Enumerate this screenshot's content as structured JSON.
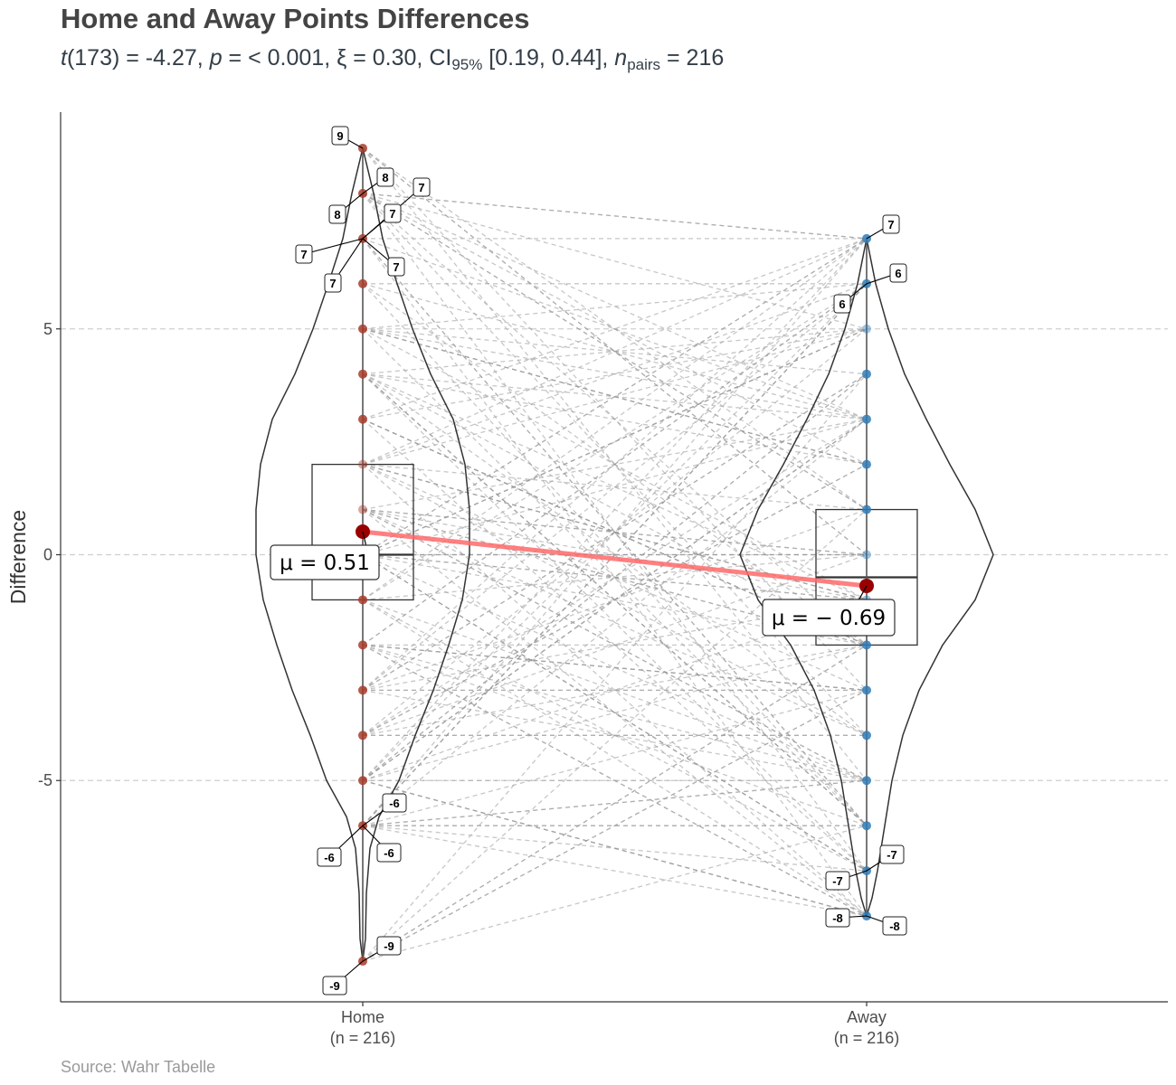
{
  "title": "Home and Away Points Differences",
  "subtitle": {
    "t_sym": "t",
    "t_df": "(173) = -4.27, ",
    "p_sym": "p",
    "p_part": " = < 0.001, ξ = 0.30, CI",
    "ci_sub": "95%",
    "ci_part": " [0.19, 0.44], ",
    "n_sym": "n",
    "n_sub": "pairs",
    "n_part": " = 216"
  },
  "caption": "Source: Wahr Tabelle",
  "colors": {
    "home": "#a83c2c",
    "away": "#2f7ab5",
    "mean_line": "#ff6b6b",
    "mean_point": "#990000",
    "grid": "#cfcfcf",
    "pair_line": "#9a9a9a"
  },
  "chart_data": {
    "type": "violin-box-paired",
    "ylabel": "Difference",
    "ylim": [
      -9.9,
      9.8
    ],
    "yticks": [
      -5,
      0,
      5
    ],
    "grid": "horizontal dashed",
    "categories": [
      {
        "name": "Home",
        "n_label": "(n = 216)",
        "mean": 0.51,
        "mean_label": "μ = 0.51",
        "box": {
          "q1": -1,
          "median": 0,
          "q3": 2
        },
        "points": [
          -9,
          -6,
          -5,
          -4,
          -3,
          -2,
          -1,
          0,
          1,
          2,
          3,
          4,
          5,
          6,
          7,
          8,
          9
        ],
        "labels": [
          9,
          8,
          8,
          7,
          7,
          7,
          7,
          7,
          -6,
          -6,
          -6,
          -9,
          -9
        ]
      },
      {
        "name": "Away",
        "n_label": "(n = 216)",
        "mean": -0.69,
        "mean_label": "μ = − 0.69",
        "box": {
          "q1": -2,
          "median": -0.5,
          "q3": 1
        },
        "points": [
          -8,
          -7,
          -6,
          -5,
          -4,
          -3,
          -2,
          -1,
          0,
          1,
          2,
          3,
          4,
          5,
          6,
          7
        ],
        "labels": [
          7,
          6,
          6,
          -7,
          -7,
          -8,
          -8
        ]
      }
    ]
  }
}
